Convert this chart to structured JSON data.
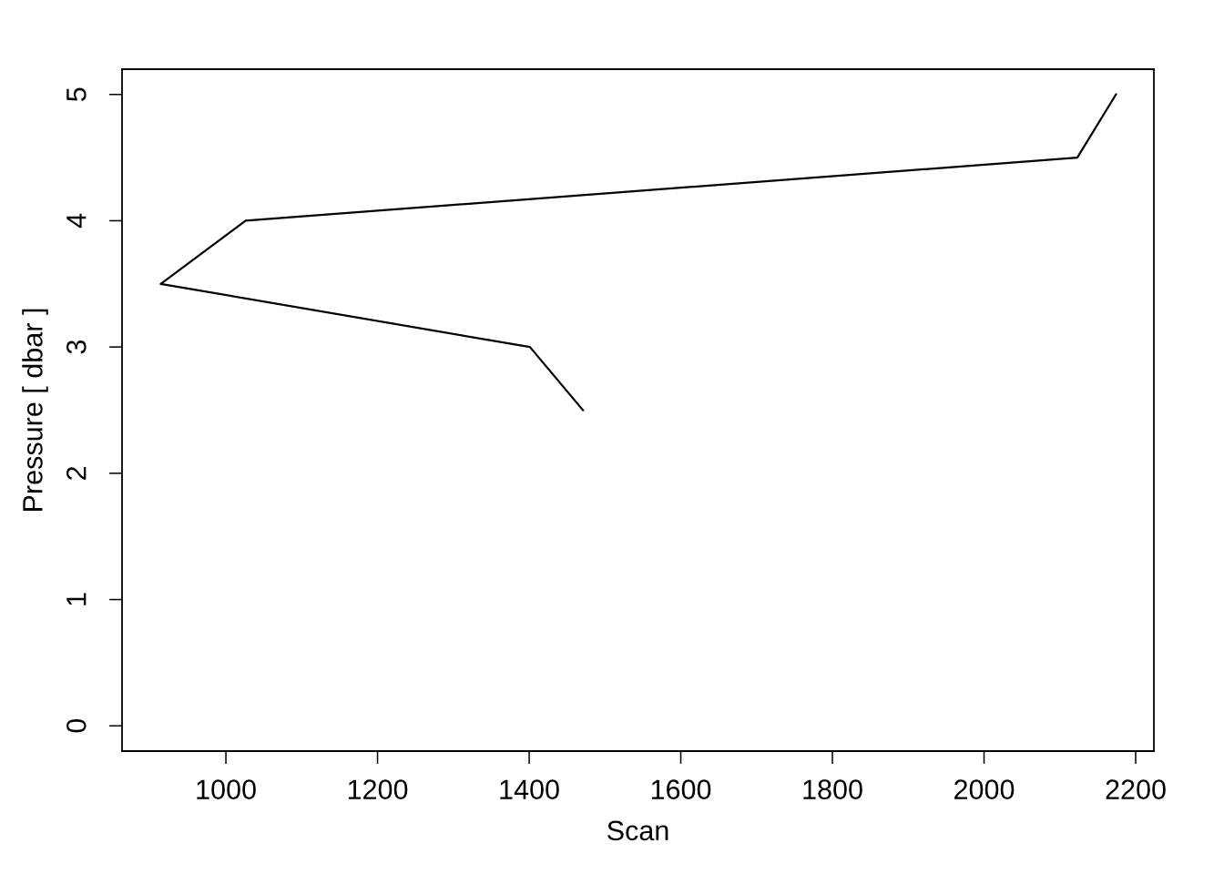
{
  "chart_data": {
    "type": "line",
    "xlabel": "Scan",
    "ylabel": "Pressure [ dbar ]",
    "x": [
      1471,
      1401,
      914,
      1026,
      2123,
      2174
    ],
    "series": [
      {
        "color": "#000000",
        "values": [
          2.5,
          3.0,
          3.5,
          4.0,
          4.5,
          5.0
        ]
      }
    ],
    "xlim": [
      863,
      2224
    ],
    "xticks": [
      1000,
      1200,
      1400,
      1600,
      1800,
      2000,
      2200
    ],
    "ylim": [
      -0.2,
      5.2
    ],
    "yticks": [
      0,
      1,
      2,
      3,
      4,
      5
    ],
    "grid": false,
    "marker": "none",
    "line_style": "solid"
  }
}
